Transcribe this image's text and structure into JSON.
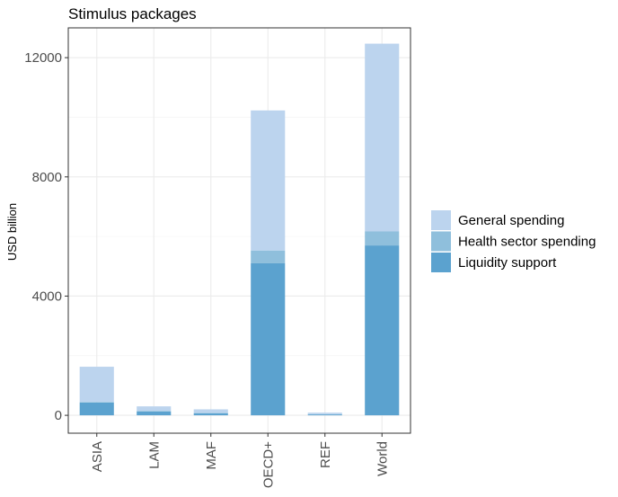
{
  "chart_data": {
    "type": "bar",
    "stacked": true,
    "title": "Stimulus packages",
    "xlabel": "",
    "ylabel": "USD billion",
    "categories": [
      "ASIA",
      "LAM",
      "MAF",
      "OECD+",
      "REF",
      "World"
    ],
    "series": [
      {
        "name": "Liquidity support",
        "values": [
          430,
          130,
          70,
          5100,
          30,
          5700
        ],
        "color": "#5ba2cf"
      },
      {
        "name": "Health sector spending",
        "values": [
          20,
          20,
          10,
          430,
          10,
          470
        ],
        "color": "#8fbfdc"
      },
      {
        "name": "General spending",
        "values": [
          1180,
          150,
          120,
          4700,
          50,
          6300
        ],
        "color": "#bcd4ee"
      }
    ],
    "ylim": [
      -600,
      13000
    ],
    "yticks": [
      0,
      4000,
      8000,
      12000
    ],
    "ytick_labels": [
      "0",
      "4000",
      "8000",
      "12000"
    ],
    "legend_order": [
      "General spending",
      "Health sector spending",
      "Liquidity support"
    ],
    "legend_position": "right",
    "grid": true
  }
}
